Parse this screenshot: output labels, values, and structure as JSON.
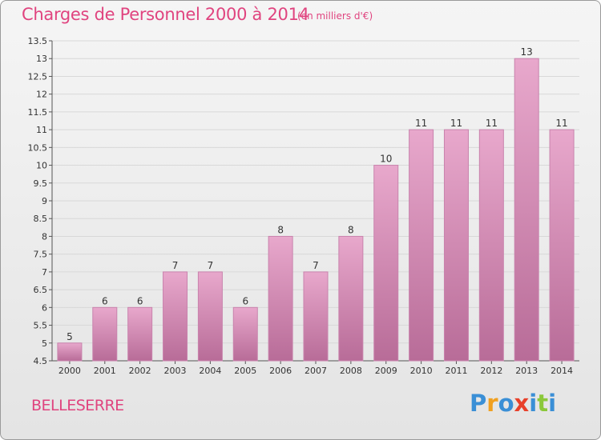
{
  "title": "Charges de Personnel 2000 à 2014",
  "unit_note": "(en milliers d'€)",
  "commune": "BELLESERRE",
  "logo": {
    "text": "Proxiti",
    "letter_colors": [
      "#3a8fd6",
      "#f0a020",
      "#3a8fd6",
      "#e8402a",
      "#3a8fd6",
      "#8bc83a",
      "#3a8fd6"
    ]
  },
  "colors": {
    "title": "#e0447f",
    "bar_light": "#e8a8cc",
    "bar_dark": "#b86c98",
    "bar_border": "#c983ad",
    "grid": "#d8d8d8"
  },
  "chart_data": {
    "type": "bar",
    "categories": [
      "2000",
      "2001",
      "2002",
      "2003",
      "2004",
      "2005",
      "2006",
      "2007",
      "2008",
      "2009",
      "2010",
      "2011",
      "2012",
      "2013",
      "2014"
    ],
    "values": [
      5,
      6,
      6,
      7,
      7,
      6,
      8,
      7,
      8,
      10,
      11,
      11,
      11,
      13,
      11
    ],
    "ylim": [
      4.5,
      13.5
    ],
    "yticks": [
      4.5,
      5,
      5.5,
      6,
      6.5,
      7,
      7.5,
      8,
      8.5,
      9,
      9.5,
      10,
      10.5,
      11,
      11.5,
      12,
      12.5,
      13,
      13.5
    ],
    "grid": true
  }
}
